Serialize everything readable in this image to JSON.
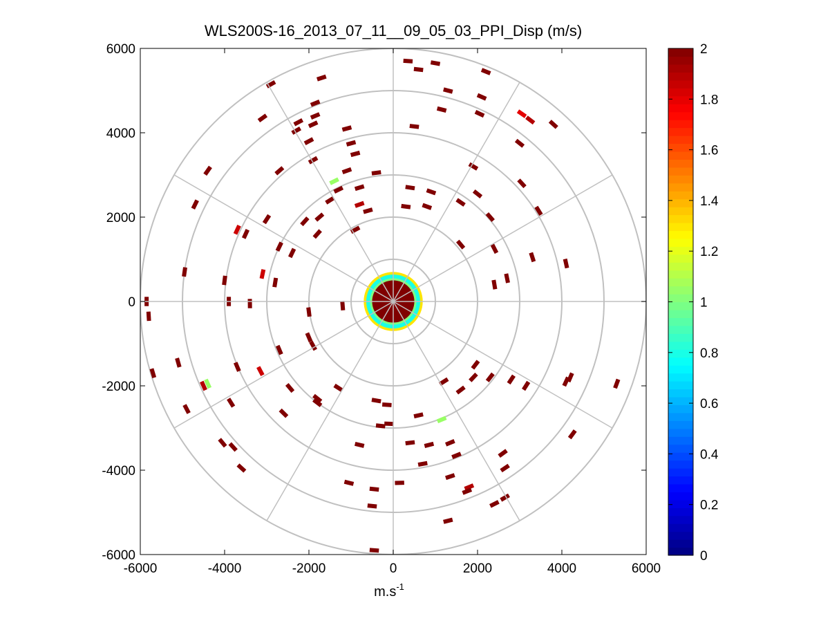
{
  "chart_data": {
    "type": "polar-scatter",
    "title": "WLS200S-16_2013_07_11__09_05_03_PPI_Disp (m/s)",
    "xlabel_base": "m.s",
    "xlabel_exp": "-1",
    "ylabel": "",
    "xlim": [
      -6000,
      6000
    ],
    "ylim": [
      -6000,
      6000
    ],
    "xticks": [
      -6000,
      -4000,
      -2000,
      0,
      2000,
      4000,
      6000
    ],
    "yticks": [
      6000,
      4000,
      2000,
      0,
      -2000,
      -4000,
      -6000
    ],
    "xtick_labels": [
      "-6000",
      "-4000",
      "-2000",
      "0",
      "2000",
      "4000",
      "6000"
    ],
    "ytick_labels": [
      "6000",
      "4000",
      "2000",
      "0",
      "-2000",
      "-4000",
      "-6000"
    ],
    "range_rings": [
      1000,
      2000,
      3000,
      4000,
      5000,
      6000
    ],
    "spoke_angles_deg": [
      0,
      30,
      60,
      90,
      120,
      150,
      180,
      210,
      240,
      270,
      300,
      330
    ],
    "colorbar": {
      "min": 0,
      "max": 2,
      "ticks": [
        2,
        1.8,
        1.6,
        1.4,
        1.2,
        1,
        0.8,
        0.6,
        0.4,
        0.2,
        0
      ],
      "tick_labels": [
        "2",
        "1.8",
        "1.6",
        "1.4",
        "1.2",
        "1",
        "0.8",
        "0.6",
        "0.4",
        "0.2",
        "0"
      ],
      "colormap": "jet"
    },
    "center_disk": {
      "radius": 700,
      "value": 2,
      "ring_radii": [
        550,
        640,
        700
      ],
      "ring_values": [
        1.0,
        0.8,
        1.3
      ]
    },
    "segments": [
      {
        "x": 350,
        "y": 5700,
        "value": 2
      },
      {
        "x": 1000,
        "y": 5650,
        "value": 2
      },
      {
        "x": 2200,
        "y": 5450,
        "value": 2
      },
      {
        "x": -2900,
        "y": 5150,
        "value": 2
      },
      {
        "x": -1700,
        "y": 5300,
        "value": 2
      },
      {
        "x": 600,
        "y": 5500,
        "value": 2
      },
      {
        "x": 1300,
        "y": 5000,
        "value": 2
      },
      {
        "x": 2100,
        "y": 4850,
        "value": 2
      },
      {
        "x": -3100,
        "y": 4350,
        "value": 2
      },
      {
        "x": -2250,
        "y": 4250,
        "value": 2
      },
      {
        "x": -1850,
        "y": 4700,
        "value": 2
      },
      {
        "x": -1900,
        "y": 4200,
        "value": 2
      },
      {
        "x": -1850,
        "y": 4400,
        "value": 2
      },
      {
        "x": 1150,
        "y": 4550,
        "value": 2
      },
      {
        "x": 2050,
        "y": 4450,
        "value": 2
      },
      {
        "x": 3050,
        "y": 4450,
        "value": 1.8
      },
      {
        "x": 3800,
        "y": 4200,
        "value": 2
      },
      {
        "x": 3250,
        "y": 4300,
        "value": 1.9
      },
      {
        "x": -2300,
        "y": 4050,
        "value": 2
      },
      {
        "x": -1100,
        "y": 4100,
        "value": 2
      },
      {
        "x": 500,
        "y": 4150,
        "value": 2
      },
      {
        "x": 3000,
        "y": 3750,
        "value": 2
      },
      {
        "x": -2000,
        "y": 3800,
        "value": 2
      },
      {
        "x": -1000,
        "y": 3750,
        "value": 2
      },
      {
        "x": -900,
        "y": 3500,
        "value": 2
      },
      {
        "x": -4400,
        "y": 3100,
        "value": 2
      },
      {
        "x": -2700,
        "y": 3100,
        "value": 2
      },
      {
        "x": -1900,
        "y": 3350,
        "value": 2
      },
      {
        "x": 1900,
        "y": 3200,
        "value": 2
      },
      {
        "x": -1100,
        "y": 3100,
        "value": 2
      },
      {
        "x": -400,
        "y": 3050,
        "value": 2
      },
      {
        "x": -1400,
        "y": 2850,
        "value": 1.05
      },
      {
        "x": -800,
        "y": 2700,
        "value": 2
      },
      {
        "x": 400,
        "y": 2700,
        "value": 2
      },
      {
        "x": 900,
        "y": 2600,
        "value": 2
      },
      {
        "x": -1300,
        "y": 2650,
        "value": 2
      },
      {
        "x": 2000,
        "y": 2550,
        "value": 2
      },
      {
        "x": 1600,
        "y": 2350,
        "value": 2
      },
      {
        "x": 3050,
        "y": 2800,
        "value": 2
      },
      {
        "x": -800,
        "y": 2300,
        "value": 1.9
      },
      {
        "x": -1500,
        "y": 2400,
        "value": 2
      },
      {
        "x": -4700,
        "y": 2300,
        "value": 2
      },
      {
        "x": -3700,
        "y": 1700,
        "value": 1.85
      },
      {
        "x": -3500,
        "y": 1600,
        "value": 2
      },
      {
        "x": -3000,
        "y": 1950,
        "value": 2
      },
      {
        "x": -2100,
        "y": 1900,
        "value": 2
      },
      {
        "x": -1750,
        "y": 2000,
        "value": 2
      },
      {
        "x": -600,
        "y": 2150,
        "value": 2
      },
      {
        "x": 300,
        "y": 2250,
        "value": 2
      },
      {
        "x": 800,
        "y": 2250,
        "value": 2
      },
      {
        "x": 3450,
        "y": 2150,
        "value": 2
      },
      {
        "x": 2300,
        "y": 2000,
        "value": 2
      },
      {
        "x": -1800,
        "y": 1600,
        "value": 2
      },
      {
        "x": -900,
        "y": 1700,
        "value": 2
      },
      {
        "x": 1600,
        "y": 1350,
        "value": 2
      },
      {
        "x": 2400,
        "y": 1250,
        "value": 2
      },
      {
        "x": 3300,
        "y": 1050,
        "value": 2
      },
      {
        "x": -2700,
        "y": 1300,
        "value": 2
      },
      {
        "x": -2400,
        "y": 1150,
        "value": 2
      },
      {
        "x": -4950,
        "y": 700,
        "value": 2
      },
      {
        "x": -3100,
        "y": 650,
        "value": 1.85
      },
      {
        "x": -2800,
        "y": 450,
        "value": 2
      },
      {
        "x": -4000,
        "y": 500,
        "value": 2
      },
      {
        "x": 4100,
        "y": 900,
        "value": 2
      },
      {
        "x": 2700,
        "y": 550,
        "value": 2
      },
      {
        "x": 2400,
        "y": 400,
        "value": 2
      },
      {
        "x": -5850,
        "y": 0,
        "value": 2
      },
      {
        "x": -5800,
        "y": -350,
        "value": 2
      },
      {
        "x": -3900,
        "y": 0,
        "value": 2
      },
      {
        "x": -3400,
        "y": -50,
        "value": 2
      },
      {
        "x": -2000,
        "y": -250,
        "value": 2
      },
      {
        "x": -1200,
        "y": -100,
        "value": 2
      },
      {
        "x": -5700,
        "y": -1700,
        "value": 2
      },
      {
        "x": -5100,
        "y": -1450,
        "value": 2
      },
      {
        "x": -3700,
        "y": -1550,
        "value": 2
      },
      {
        "x": -3150,
        "y": -1650,
        "value": 1.85
      },
      {
        "x": -2700,
        "y": -1150,
        "value": 2
      },
      {
        "x": -2000,
        "y": -850,
        "value": 2
      },
      {
        "x": -1900,
        "y": -1050,
        "value": 2
      },
      {
        "x": -4500,
        "y": -2000,
        "value": 1.9
      },
      {
        "x": -4400,
        "y": -1950,
        "value": 1.05
      },
      {
        "x": -4900,
        "y": -2550,
        "value": 2
      },
      {
        "x": -3850,
        "y": -2400,
        "value": 2
      },
      {
        "x": -2450,
        "y": -2050,
        "value": 2
      },
      {
        "x": -2600,
        "y": -2650,
        "value": 2
      },
      {
        "x": -1800,
        "y": -2300,
        "value": 2
      },
      {
        "x": -1300,
        "y": -2050,
        "value": 2
      },
      {
        "x": -1800,
        "y": -2400,
        "value": 2
      },
      {
        "x": -400,
        "y": -2350,
        "value": 2
      },
      {
        "x": -150,
        "y": -2450,
        "value": 2
      },
      {
        "x": 1200,
        "y": -1900,
        "value": 2
      },
      {
        "x": 1600,
        "y": -2100,
        "value": 2
      },
      {
        "x": 1900,
        "y": -1800,
        "value": 2
      },
      {
        "x": 2300,
        "y": -1800,
        "value": 2
      },
      {
        "x": 2800,
        "y": -1850,
        "value": 2
      },
      {
        "x": 3150,
        "y": -2000,
        "value": 2
      },
      {
        "x": 4100,
        "y": -1900,
        "value": 2
      },
      {
        "x": 5300,
        "y": -1950,
        "value": 2
      },
      {
        "x": 4200,
        "y": -1800,
        "value": 2
      },
      {
        "x": 1950,
        "y": -1500,
        "value": 2
      },
      {
        "x": 1150,
        "y": -2800,
        "value": 1.05
      },
      {
        "x": 600,
        "y": -2700,
        "value": 2
      },
      {
        "x": -300,
        "y": -2950,
        "value": 2
      },
      {
        "x": -100,
        "y": -2900,
        "value": 2
      },
      {
        "x": -3800,
        "y": -3450,
        "value": 2
      },
      {
        "x": -4050,
        "y": -3350,
        "value": 2
      },
      {
        "x": -3600,
        "y": -3950,
        "value": 2
      },
      {
        "x": -800,
        "y": -3400,
        "value": 2
      },
      {
        "x": 400,
        "y": -3350,
        "value": 2
      },
      {
        "x": 850,
        "y": -3400,
        "value": 2
      },
      {
        "x": 1350,
        "y": -3350,
        "value": 2
      },
      {
        "x": 700,
        "y": -3850,
        "value": 2
      },
      {
        "x": 1500,
        "y": -3650,
        "value": 2
      },
      {
        "x": 2600,
        "y": -3600,
        "value": 2
      },
      {
        "x": 4250,
        "y": -3150,
        "value": 2
      },
      {
        "x": 1350,
        "y": -4150,
        "value": 2
      },
      {
        "x": 2650,
        "y": -3950,
        "value": 2
      },
      {
        "x": -1050,
        "y": -4300,
        "value": 2
      },
      {
        "x": -450,
        "y": -4450,
        "value": 2
      },
      {
        "x": 150,
        "y": -4300,
        "value": 2
      },
      {
        "x": 1800,
        "y": -4400,
        "value": 1.9
      },
      {
        "x": 1750,
        "y": -4500,
        "value": 2
      },
      {
        "x": 2400,
        "y": -4800,
        "value": 2
      },
      {
        "x": 2650,
        "y": -4650,
        "value": 2
      },
      {
        "x": -500,
        "y": -4850,
        "value": 2
      },
      {
        "x": 1300,
        "y": -5200,
        "value": 2
      },
      {
        "x": -450,
        "y": -5900,
        "value": 2
      }
    ]
  }
}
